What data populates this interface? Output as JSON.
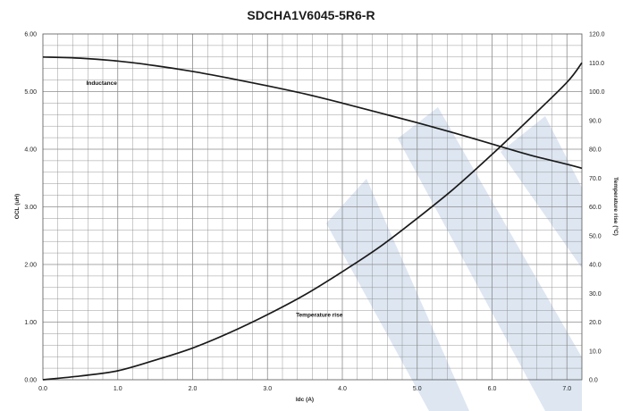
{
  "chart_data": {
    "type": "line",
    "title": "SDCHA1V6045-5R6-R",
    "xlabel": "Idc (A)",
    "ylabel_left": "OCL (uH)",
    "ylabel_right": "Temperature rise (°C)",
    "xlim": [
      0,
      7.2
    ],
    "ylim_left": [
      0,
      6
    ],
    "ylim_right": [
      0,
      120
    ],
    "x_ticks": [
      "0.0",
      "1.0",
      "2.0",
      "3.0",
      "4.0",
      "5.0",
      "6.0",
      "7.0"
    ],
    "y_left_ticks": [
      "0.00",
      "1.00",
      "2.00",
      "3.00",
      "4.00",
      "5.00",
      "6.00"
    ],
    "y_right_ticks": [
      "0.0",
      "10.0",
      "20.0",
      "30.0",
      "40.0",
      "50.0",
      "60.0",
      "70.0",
      "80.0",
      "90.0",
      "100.0",
      "110.0",
      "120.0"
    ],
    "grid": true,
    "series": [
      {
        "name": "Inductance",
        "axis": "left",
        "x": [
          0.0,
          0.5,
          1.0,
          1.5,
          2.0,
          2.5,
          3.0,
          3.5,
          4.0,
          4.5,
          5.0,
          5.5,
          6.0,
          6.5,
          7.0,
          7.2
        ],
        "y": [
          5.6,
          5.58,
          5.53,
          5.45,
          5.35,
          5.23,
          5.1,
          4.96,
          4.8,
          4.63,
          4.46,
          4.28,
          4.09,
          3.9,
          3.74,
          3.67
        ]
      },
      {
        "name": "Temperature rise",
        "axis": "right",
        "x": [
          0.0,
          0.5,
          1.0,
          1.5,
          2.0,
          2.5,
          3.0,
          3.5,
          4.0,
          4.5,
          5.0,
          5.5,
          6.0,
          6.5,
          7.0,
          7.2
        ],
        "y": [
          0.0,
          1.3,
          3.1,
          6.8,
          11.0,
          16.4,
          22.6,
          29.5,
          37.5,
          46.1,
          56.0,
          66.5,
          78.2,
          90.5,
          103.2,
          110.0
        ]
      }
    ],
    "annotations": [
      {
        "text": "Inductance",
        "x": 0.58,
        "y": 5.12,
        "axis": "left"
      },
      {
        "text": "Temperature rise",
        "x": 3.38,
        "y": 21.8,
        "axis": "right"
      }
    ],
    "colors": {
      "line": "#1a1a1a",
      "grid": "#8c8c8c",
      "watermark": "#dde6f1"
    }
  }
}
